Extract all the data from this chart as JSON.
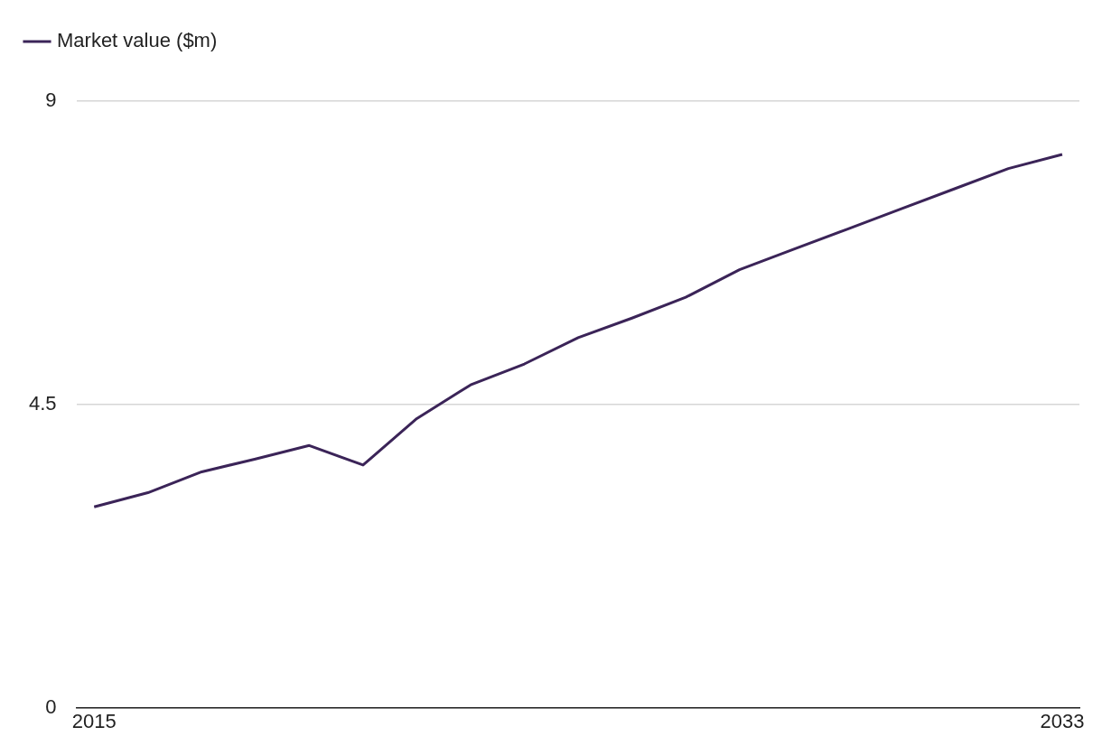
{
  "chart_data": {
    "type": "line",
    "x": [
      2015,
      2016,
      2017,
      2018,
      2019,
      2020,
      2021,
      2022,
      2023,
      2024,
      2025,
      2026,
      2027,
      2028,
      2029,
      2030,
      2031,
      2032,
      2033
    ],
    "series": [
      {
        "name": "Market value ($m)",
        "color": "#3b2458",
        "values": [
          2.98,
          3.19,
          3.5,
          3.69,
          3.89,
          3.6,
          4.29,
          4.79,
          5.1,
          5.49,
          5.78,
          6.09,
          6.5,
          6.8,
          7.1,
          7.4,
          7.7,
          8.0,
          8.21
        ]
      }
    ],
    "xlim": [
      2014.67,
      2033.32
    ],
    "xticks": [
      2015,
      2033
    ],
    "ylim": [
      0,
      9
    ],
    "yticks": [
      0,
      4.5,
      9
    ],
    "grid": "y",
    "legend": "top left"
  }
}
